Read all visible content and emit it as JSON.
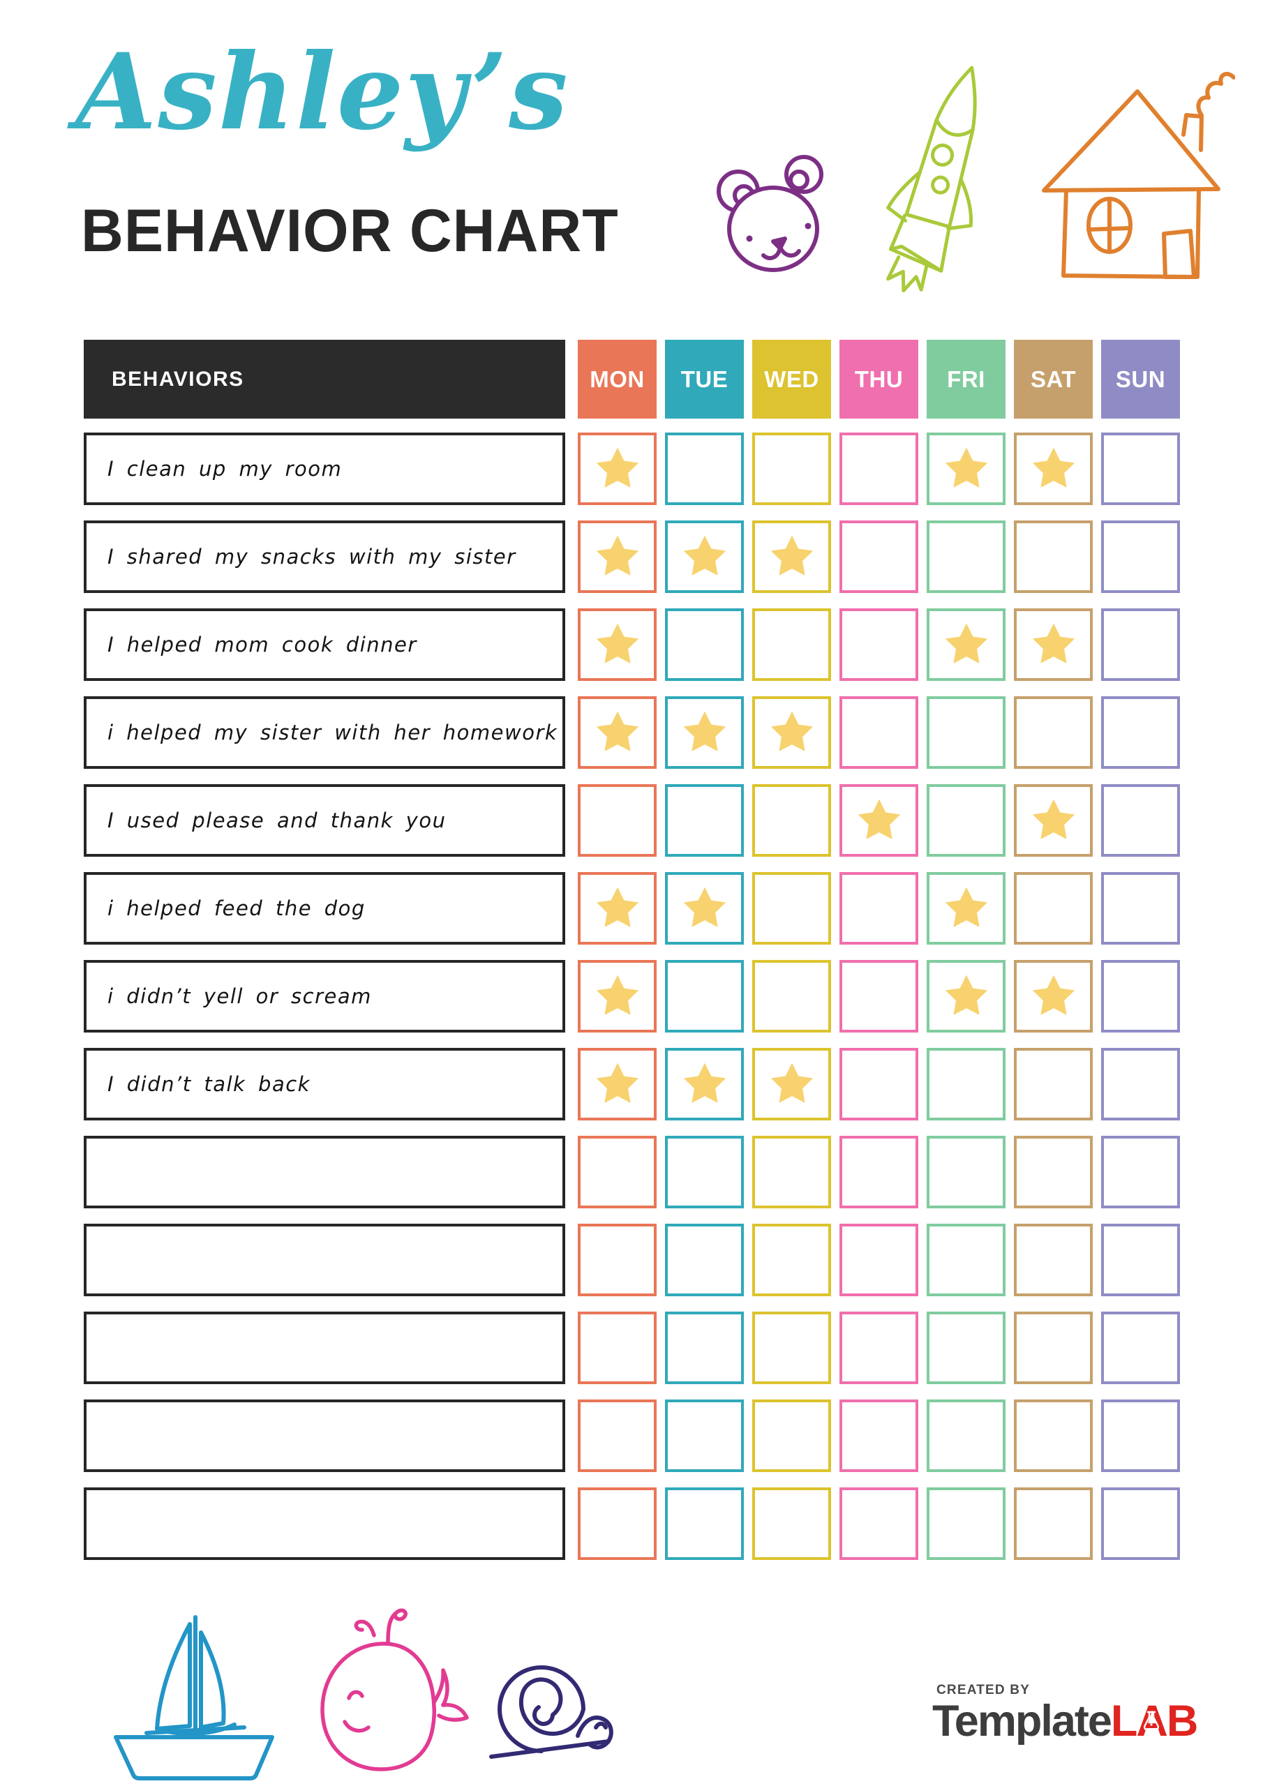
{
  "header": {
    "script_title": "Ashley’s",
    "script_color": "#39b1c5",
    "main_title": "BEHAVIOR CHART",
    "main_color": "#272727"
  },
  "table": {
    "behaviors_header": "BEHAVIORS",
    "header_bg": "#2b2b2b",
    "star_color": "#f7d26e",
    "days": [
      {
        "label": "MON",
        "color": "#e97657"
      },
      {
        "label": "TUE",
        "color": "#30a9ba"
      },
      {
        "label": "WED",
        "color": "#dcc32f"
      },
      {
        "label": "THU",
        "color": "#f06fae"
      },
      {
        "label": "FRI",
        "color": "#80cc9e"
      },
      {
        "label": "SAT",
        "color": "#c6a06c"
      },
      {
        "label": "SUN",
        "color": "#8f8cc5"
      }
    ],
    "rows": [
      {
        "label": "I clean up my room",
        "stars": [
          "MON",
          "FRI",
          "SAT"
        ]
      },
      {
        "label": "I shared my snacks with my sister",
        "stars": [
          "MON",
          "TUE",
          "WED"
        ]
      },
      {
        "label": "I helped mom cook dinner",
        "stars": [
          "MON",
          "FRI",
          "SAT"
        ]
      },
      {
        "label": "i helped my sister with her homework",
        "stars": [
          "MON",
          "TUE",
          "WED"
        ]
      },
      {
        "label": "I used please and thank you",
        "stars": [
          "THU",
          "SAT"
        ]
      },
      {
        "label": "i helped feed the dog",
        "stars": [
          "MON",
          "TUE",
          "FRI"
        ]
      },
      {
        "label": "i didn’t yell or scream",
        "stars": [
          "MON",
          "FRI",
          "SAT"
        ]
      },
      {
        "label": "I didn’t talk back",
        "stars": [
          "MON",
          "TUE",
          "WED"
        ]
      },
      {
        "label": "",
        "stars": []
      },
      {
        "label": "",
        "stars": []
      },
      {
        "label": "",
        "stars": []
      },
      {
        "label": "",
        "stars": []
      },
      {
        "label": "",
        "stars": []
      }
    ]
  },
  "decorations": {
    "top_icons": [
      "bear-doodle",
      "rocket-doodle",
      "house-doodle"
    ],
    "bottom_icons": [
      "sailboat-doodle",
      "whale-doodle",
      "snail-doodle"
    ],
    "bear_color": "#7c2f85",
    "rocket_color": "#a9c93a",
    "house_color": "#e0802e",
    "sailboat_color": "#2395c7",
    "whale_color": "#e23b92",
    "snail_color": "#322a72"
  },
  "footer": {
    "created_by": "CREATED BY",
    "created_by_color": "#4a4a4a",
    "brand_template": "Template",
    "brand_template_color": "#3d3d3d",
    "brand_lab": "LAB",
    "brand_lab_color": "#e0241f"
  }
}
